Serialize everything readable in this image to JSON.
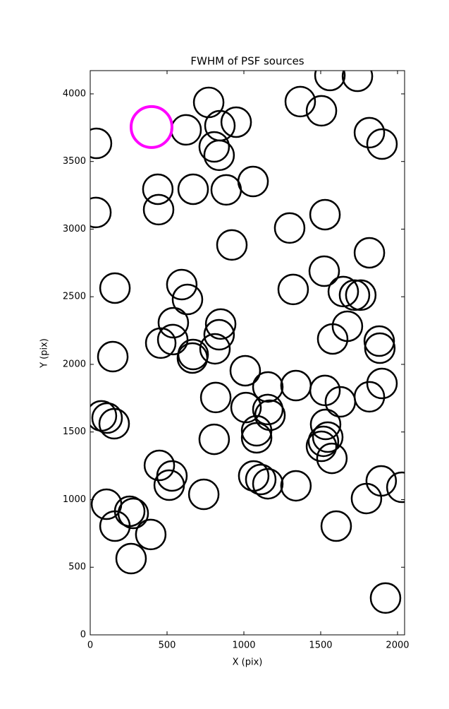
{
  "chart_data": {
    "type": "scatter",
    "title": "FWHM of PSF sources",
    "xlabel": "X (pix)",
    "ylabel": "Y (pix)",
    "xlim": [
      0,
      2046
    ],
    "ylim": [
      0,
      4172
    ],
    "xticks": [
      0,
      500,
      1000,
      1500,
      2000
    ],
    "yticks": [
      0,
      500,
      1000,
      1500,
      2000,
      2500,
      3000,
      3500,
      4000
    ],
    "grid": false,
    "series": [
      {
        "color": "#000000",
        "x": [
          41,
          37,
          771,
          624,
          844,
          950,
          807,
          839,
          440,
          670,
          885,
          1060,
          445,
          1367,
          1560,
          1739,
          1505,
          1817,
          1899,
          1528,
          1298,
          922,
          1817,
          1523,
          1321,
          161,
          596,
          633,
          1647,
          1720,
          1761,
          541,
          849,
          839,
          537,
          459,
          1578,
          1674,
          1881,
          1885,
          147,
          670,
          665,
          812,
          1009,
          1156,
          1339,
          1528,
          1628,
          1817,
          1899,
          817,
          1014,
          1156,
          1170,
          73,
          110,
          156,
          1532,
          1083,
          1083,
          807,
          1546,
          1518,
          1505,
          1573,
          450,
          532,
          514,
          739,
          1064,
          1110,
          1156,
          1339,
          1894,
          2028,
          1798,
          106,
          257,
          280,
          161,
          394,
          1601,
          266,
          1922
        ],
        "y": [
          3634,
          3123,
          3937,
          3734,
          3765,
          3791,
          3608,
          3546,
          3295,
          3295,
          3290,
          3352,
          3144,
          3943,
          4136,
          4130,
          3875,
          3713,
          3629,
          3107,
          3008,
          2883,
          2825,
          2689,
          2554,
          2564,
          2590,
          2480,
          2538,
          2512,
          2512,
          2308,
          2298,
          2219,
          2183,
          2157,
          2188,
          2282,
          2172,
          2120,
          2057,
          2073,
          2047,
          2115,
          1953,
          1833,
          1843,
          1807,
          1723,
          1760,
          1859,
          1755,
          1681,
          1666,
          1624,
          1619,
          1603,
          1561,
          1556,
          1509,
          1457,
          1446,
          1462,
          1431,
          1394,
          1305,
          1253,
          1175,
          1107,
          1039,
          1175,
          1149,
          1117,
          1102,
          1138,
          1091,
          1008,
          966,
          914,
          898,
          804,
          742,
          804,
          564,
          272
        ]
      },
      {
        "color": "#ff00ff",
        "x": [
          399
        ],
        "y": [
          3755
        ]
      }
    ]
  }
}
